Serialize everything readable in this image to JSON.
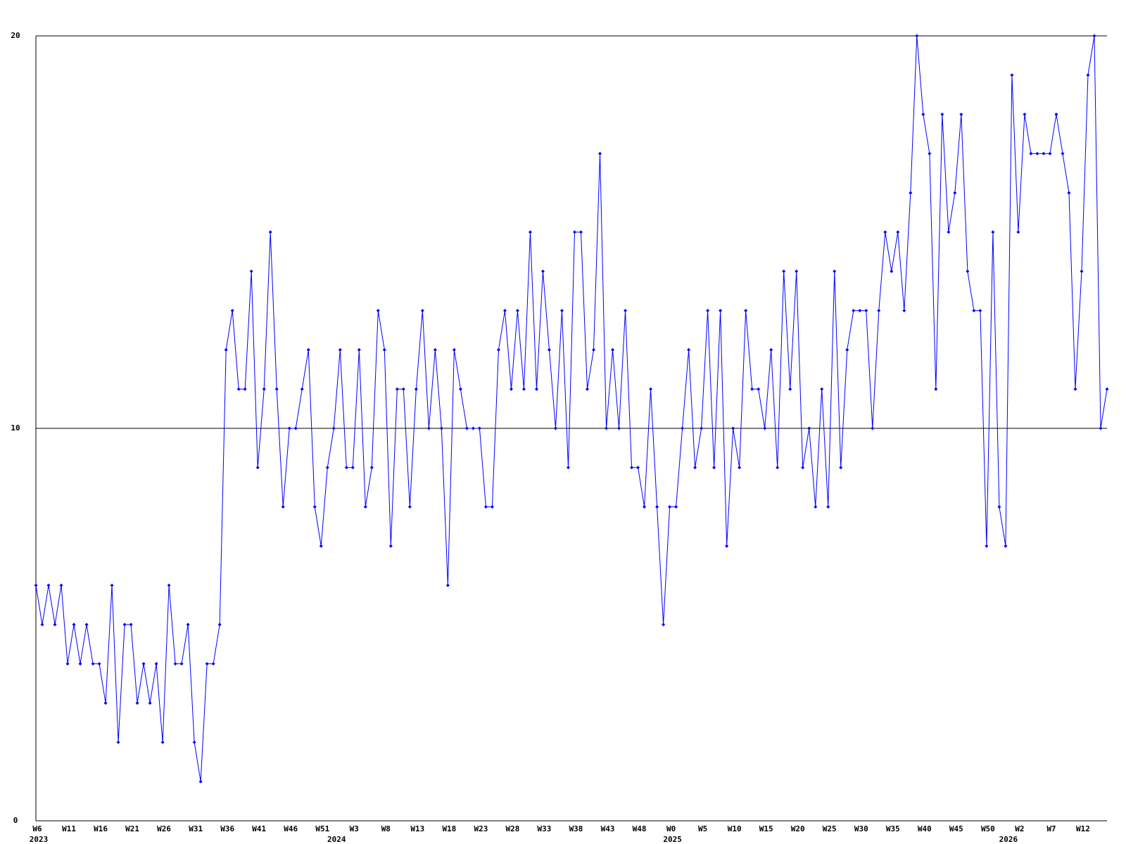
{
  "chart_data": {
    "type": "line",
    "ylim": [
      0,
      20
    ],
    "yticks": [
      0,
      10,
      20
    ],
    "grid": true,
    "categories": [
      "W6",
      null,
      null,
      null,
      null,
      "W11",
      null,
      null,
      null,
      null,
      "W16",
      null,
      null,
      null,
      null,
      "W21",
      null,
      null,
      null,
      null,
      "W26",
      null,
      null,
      null,
      null,
      "W31",
      null,
      null,
      null,
      null,
      "W36",
      null,
      null,
      null,
      null,
      "W41",
      null,
      null,
      null,
      null,
      "W46",
      null,
      null,
      null,
      null,
      "W51",
      null,
      null,
      null,
      null,
      "W3",
      null,
      null,
      null,
      null,
      "W8",
      null,
      null,
      null,
      null,
      "W13",
      null,
      null,
      null,
      null,
      "W18",
      null,
      null,
      null,
      null,
      "W23",
      null,
      null,
      null,
      null,
      "W28",
      null,
      null,
      null,
      null,
      "W33",
      null,
      null,
      null,
      null,
      "W38",
      null,
      null,
      null,
      null,
      "W43",
      null,
      null,
      null,
      null,
      "W48",
      null,
      null,
      null,
      null,
      "W0",
      null,
      null,
      null,
      null,
      "W5",
      null,
      null,
      null,
      null,
      "W10",
      null,
      null,
      null,
      null,
      "W15",
      null,
      null,
      null,
      null,
      "W20",
      null,
      null,
      null,
      null,
      "W25",
      null,
      null,
      null,
      null,
      "W30",
      null,
      null,
      null,
      null,
      "W35",
      null,
      null,
      null,
      null,
      "W40",
      null,
      null,
      null,
      null,
      "W45",
      null,
      null,
      null,
      null,
      "W50",
      null,
      null,
      null,
      null,
      "W2",
      null,
      null,
      null,
      null,
      "W7",
      null,
      null,
      null,
      null,
      "W12",
      null,
      null,
      null,
      null
    ],
    "year_labels": [
      "2023",
      null,
      null,
      null,
      null,
      null,
      null,
      null,
      null,
      null,
      null,
      null,
      null,
      null,
      null,
      null,
      null,
      null,
      null,
      null,
      null,
      null,
      null,
      null,
      null,
      null,
      null,
      null,
      null,
      null,
      null,
      null,
      null,
      null,
      null,
      null,
      null,
      null,
      null,
      null,
      null,
      null,
      null,
      null,
      null,
      null,
      null,
      "2024",
      null,
      null,
      null,
      null,
      null,
      null,
      null,
      null,
      null,
      null,
      null,
      null,
      null,
      null,
      null,
      null,
      null,
      null,
      null,
      null,
      null,
      null,
      null,
      null,
      null,
      null,
      null,
      null,
      null,
      null,
      null,
      null,
      null,
      null,
      null,
      null,
      null,
      null,
      null,
      null,
      null,
      null,
      null,
      null,
      null,
      null,
      null,
      null,
      null,
      null,
      null,
      null,
      "2025",
      null,
      null,
      null,
      null,
      null,
      null,
      null,
      null,
      null,
      null,
      null,
      null,
      null,
      null,
      null,
      null,
      null,
      null,
      null,
      null,
      null,
      null,
      null,
      null,
      null,
      null,
      null,
      null,
      null,
      null,
      null,
      null,
      null,
      null,
      null,
      null,
      null,
      null,
      null,
      null,
      null,
      null,
      null,
      null,
      null,
      null,
      null,
      null,
      null,
      null,
      null,
      null,
      "2026",
      null,
      null,
      null,
      null,
      null,
      null,
      null,
      null,
      null,
      null,
      null,
      null,
      null,
      null,
      null,
      null
    ],
    "series": [
      {
        "color": "#0000ff",
        "values": [
          6,
          5,
          6,
          5,
          6,
          4,
          5,
          4,
          5,
          4,
          4,
          3,
          6,
          2,
          5,
          5,
          3,
          4,
          3,
          4,
          2,
          6,
          4,
          4,
          5,
          2,
          1,
          4,
          4,
          5,
          12,
          13,
          11,
          11,
          14,
          9,
          11,
          15,
          11,
          8,
          10,
          10,
          11,
          12,
          8,
          7,
          9,
          10,
          12,
          9,
          9,
          12,
          8,
          9,
          13,
          12,
          7,
          11,
          11,
          8,
          11,
          13,
          10,
          12,
          10,
          6,
          12,
          11,
          10,
          10,
          10,
          8,
          8,
          12,
          13,
          11,
          13,
          11,
          15,
          11,
          14,
          12,
          10,
          13,
          9,
          15,
          15,
          11,
          12,
          17,
          10,
          12,
          10,
          13,
          9,
          9,
          8,
          11,
          8,
          5,
          8,
          8,
          10,
          12,
          9,
          10,
          13,
          9,
          13,
          7,
          10,
          9,
          13,
          11,
          11,
          10,
          12,
          9,
          14,
          11,
          14,
          9,
          10,
          8,
          11,
          8,
          14,
          9,
          12,
          13,
          13,
          13,
          10,
          13,
          15,
          14,
          15,
          13,
          16,
          20,
          18,
          17,
          11,
          18,
          15,
          16,
          18,
          14,
          13,
          13,
          7,
          15,
          8,
          7,
          19,
          15,
          18,
          17,
          17,
          17,
          17,
          18,
          17,
          16,
          11,
          14,
          19,
          20,
          10,
          11
        ]
      }
    ]
  }
}
